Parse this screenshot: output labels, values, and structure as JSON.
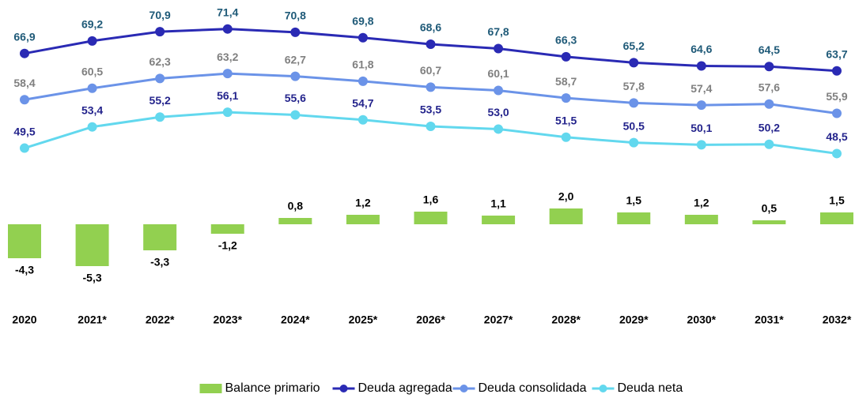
{
  "chart_data": {
    "type": "bar-line",
    "categories": [
      "2020",
      "2021*",
      "2022*",
      "2023*",
      "2024*",
      "2025*",
      "2026*",
      "2027*",
      "2028*",
      "2029*",
      "2030*",
      "2031*",
      "2032*"
    ],
    "ylim": [
      40,
      76
    ],
    "y2lim": [
      -7,
      3
    ],
    "legend": "bottom",
    "series": [
      {
        "name": "Balance primario",
        "type": "bar",
        "axis": "y2",
        "color": "#92d050",
        "label_color": "#000000",
        "values": [
          -4.3,
          -5.3,
          -3.3,
          -1.2,
          0.8,
          1.2,
          1.6,
          1.1,
          2.0,
          1.5,
          1.2,
          0.5,
          1.5
        ],
        "value_labels": [
          "-4,3",
          "-5,3",
          "-3,3",
          "-1,2",
          "0,8",
          "1,2",
          "1,6",
          "1,1",
          "2,0",
          "1,5",
          "1,2",
          "0,5",
          "1,5"
        ]
      },
      {
        "name": "Deuda agregada",
        "type": "line",
        "color": "#2a2ab4",
        "label_color": "#1f5a78",
        "values": [
          66.9,
          69.2,
          70.9,
          71.4,
          70.8,
          69.8,
          68.6,
          67.8,
          66.3,
          65.2,
          64.6,
          64.5,
          63.7
        ],
        "value_labels": [
          "66,9",
          "69,2",
          "70,9",
          "71,4",
          "70,8",
          "69,8",
          "68,6",
          "67,8",
          "66,3",
          "65,2",
          "64,6",
          "64,5",
          "63,7"
        ]
      },
      {
        "name": "Deuda consolidada",
        "type": "line",
        "color": "#6b93e8",
        "label_color": "#808080",
        "values": [
          58.4,
          60.5,
          62.3,
          63.2,
          62.7,
          61.8,
          60.7,
          60.1,
          58.7,
          57.8,
          57.4,
          57.6,
          55.9
        ],
        "value_labels": [
          "58,4",
          "60,5",
          "62,3",
          "63,2",
          "62,7",
          "61,8",
          "60,7",
          "60,1",
          "58,7",
          "57,8",
          "57,4",
          "57,6",
          "55,9"
        ]
      },
      {
        "name": "Deuda neta",
        "type": "line",
        "color": "#62d8ee",
        "label_color": "#24248c",
        "values": [
          49.5,
          53.4,
          55.2,
          56.1,
          55.6,
          54.7,
          53.5,
          53.0,
          51.5,
          50.5,
          50.1,
          50.2,
          48.5
        ],
        "value_labels": [
          "49,5",
          "53,4",
          "55,2",
          "56,1",
          "55,6",
          "54,7",
          "53,5",
          "53,0",
          "51,5",
          "50,5",
          "50,1",
          "50,2",
          "48,5"
        ]
      }
    ]
  }
}
